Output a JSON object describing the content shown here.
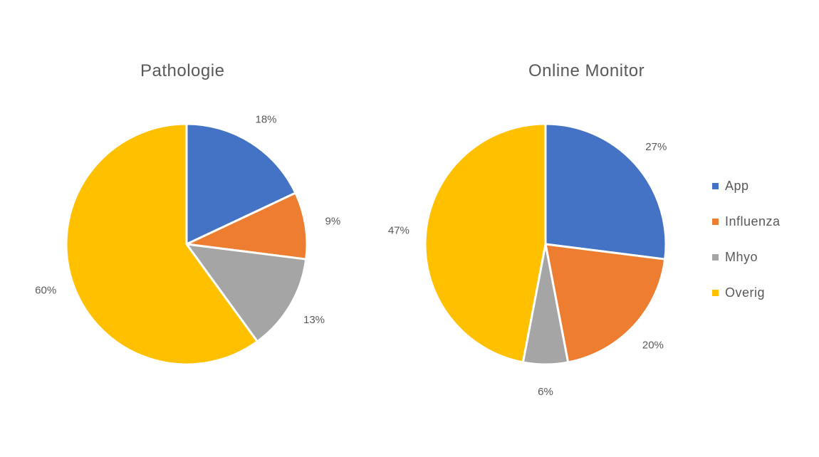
{
  "chart_data": [
    {
      "type": "pie",
      "title": "Pathologie",
      "categories": [
        "App",
        "Influenza",
        "Mhyo",
        "Overig"
      ],
      "values": [
        18,
        9,
        13,
        60
      ],
      "labels": [
        "18%",
        "9%",
        "13%",
        "60%"
      ],
      "colors": [
        "#4472C4",
        "#ED7D31",
        "#A5A5A5",
        "#FFC000"
      ]
    },
    {
      "type": "pie",
      "title": "Online Monitor",
      "categories": [
        "App",
        "Influenza",
        "Mhyo",
        "Overig"
      ],
      "values": [
        27,
        20,
        6,
        47
      ],
      "labels": [
        "27%",
        "20%",
        "6%",
        "47%"
      ],
      "colors": [
        "#4472C4",
        "#ED7D31",
        "#A5A5A5",
        "#FFC000"
      ],
      "legend_position": "right"
    }
  ],
  "legend": {
    "items": [
      {
        "label": "App",
        "color": "#4472C4"
      },
      {
        "label": "Influenza",
        "color": "#ED7D31"
      },
      {
        "label": "Mhyo",
        "color": "#A5A5A5"
      },
      {
        "label": "Overig",
        "color": "#FFC000"
      }
    ]
  }
}
